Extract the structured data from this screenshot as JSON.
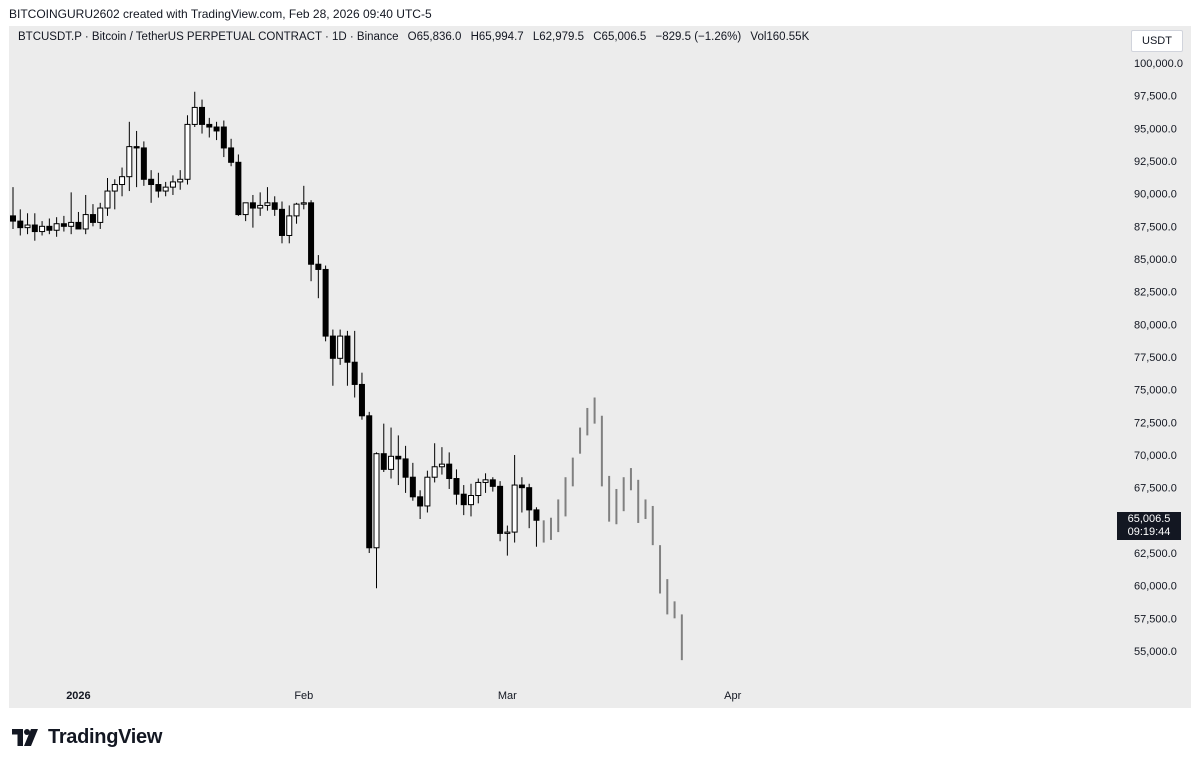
{
  "header": {
    "credit": "BITCOINGURU2602 created with TradingView.com, Feb 28, 2026 09:40 UTC-5"
  },
  "legend": {
    "symbol": "BTCUSDT.P · Bitcoin / TetherUS PERPETUAL CONTRACT · 1D · Binance",
    "open": "O65,836.0",
    "high": "H65,994.7",
    "low": "L62,979.5",
    "close": "C65,006.5",
    "change": "−829.5 (−1.26%)",
    "volume": "Vol160.55K"
  },
  "currency_button": "USDT",
  "last_price": {
    "value": 65006.5,
    "label": "65,006.5",
    "countdown": "09:19:44"
  },
  "footer": {
    "brand": "TradingView"
  },
  "colors": {
    "up_fill": "#ffffff",
    "down_fill": "#000000",
    "candle_outline": "#000000",
    "projection_bars": "#808080",
    "chart_background": "#ececec"
  },
  "chart_data": {
    "type": "candlestick",
    "y_axis": {
      "ylim": [
        53700,
        100900
      ],
      "ticks": [
        55000,
        57500,
        60000,
        62500,
        65000,
        67500,
        70000,
        72500,
        75000,
        77500,
        80000,
        82500,
        85000,
        87500,
        90000,
        92500,
        95000,
        97500,
        100000
      ],
      "tick_labels": [
        "55,000.0",
        "57,500.0",
        "60,000.0",
        "62,500.0",
        "65,000.0",
        "67,500.0",
        "70,000.0",
        "72,500.0",
        "75,000.0",
        "77,500.0",
        "80,000.0",
        "82,500.0",
        "85,000.0",
        "87,500.0",
        "90,000.0",
        "92,500.0",
        "95,000.0",
        "97,500.0",
        "100,000.0"
      ]
    },
    "x_axis": {
      "ticks": [
        {
          "label": "2026",
          "date": "2026-01-01",
          "bold": true
        },
        {
          "label": "Feb",
          "date": "2026-02-01",
          "bold": false
        },
        {
          "label": "Mar",
          "date": "2026-03-01",
          "bold": false
        },
        {
          "label": "Apr",
          "date": "2026-04-01",
          "bold": false
        }
      ]
    },
    "candles": [
      {
        "date": "2025-12-23",
        "o": 88300,
        "h": 90500,
        "l": 87300,
        "c": 87900
      },
      {
        "date": "2025-12-24",
        "o": 87900,
        "h": 88800,
        "l": 86800,
        "c": 87400
      },
      {
        "date": "2025-12-25",
        "o": 87400,
        "h": 88500,
        "l": 86900,
        "c": 87600
      },
      {
        "date": "2025-12-26",
        "o": 87600,
        "h": 88500,
        "l": 86400,
        "c": 87100
      },
      {
        "date": "2025-12-27",
        "o": 87100,
        "h": 87900,
        "l": 86800,
        "c": 87500
      },
      {
        "date": "2025-12-28",
        "o": 87500,
        "h": 88100,
        "l": 86900,
        "c": 87200
      },
      {
        "date": "2025-12-29",
        "o": 87200,
        "h": 88200,
        "l": 86700,
        "c": 87700
      },
      {
        "date": "2025-12-30",
        "o": 87700,
        "h": 88300,
        "l": 87100,
        "c": 87500
      },
      {
        "date": "2025-12-31",
        "o": 87500,
        "h": 90100,
        "l": 86900,
        "c": 87800
      },
      {
        "date": "2026-01-01",
        "o": 87800,
        "h": 88600,
        "l": 87400,
        "c": 87300
      },
      {
        "date": "2026-01-02",
        "o": 87300,
        "h": 89900,
        "l": 86900,
        "c": 88400
      },
      {
        "date": "2026-01-03",
        "o": 88400,
        "h": 89200,
        "l": 87500,
        "c": 87800
      },
      {
        "date": "2026-01-04",
        "o": 87800,
        "h": 89300,
        "l": 87300,
        "c": 88900
      },
      {
        "date": "2026-01-05",
        "o": 88900,
        "h": 91200,
        "l": 88300,
        "c": 90200
      },
      {
        "date": "2026-01-06",
        "o": 90200,
        "h": 91100,
        "l": 88800,
        "c": 90700
      },
      {
        "date": "2026-01-07",
        "o": 90700,
        "h": 92000,
        "l": 89800,
        "c": 91300
      },
      {
        "date": "2026-01-08",
        "o": 91300,
        "h": 95500,
        "l": 90200,
        "c": 93600
      },
      {
        "date": "2026-01-09",
        "o": 93600,
        "h": 94800,
        "l": 90500,
        "c": 93500
      },
      {
        "date": "2026-01-10",
        "o": 93500,
        "h": 94000,
        "l": 90600,
        "c": 91100
      },
      {
        "date": "2026-01-11",
        "o": 91100,
        "h": 91800,
        "l": 89300,
        "c": 90700
      },
      {
        "date": "2026-01-12",
        "o": 90700,
        "h": 91600,
        "l": 89700,
        "c": 90200
      },
      {
        "date": "2026-01-13",
        "o": 90200,
        "h": 90900,
        "l": 89800,
        "c": 90500
      },
      {
        "date": "2026-01-14",
        "o": 90500,
        "h": 91400,
        "l": 89900,
        "c": 90900
      },
      {
        "date": "2026-01-15",
        "o": 90900,
        "h": 91800,
        "l": 90300,
        "c": 91100
      },
      {
        "date": "2026-01-16",
        "o": 91100,
        "h": 96000,
        "l": 90700,
        "c": 95300
      },
      {
        "date": "2026-01-17",
        "o": 95300,
        "h": 97800,
        "l": 95100,
        "c": 96600
      },
      {
        "date": "2026-01-18",
        "o": 96600,
        "h": 97200,
        "l": 94600,
        "c": 95300
      },
      {
        "date": "2026-01-19",
        "o": 95300,
        "h": 95800,
        "l": 94300,
        "c": 95100
      },
      {
        "date": "2026-01-20",
        "o": 95100,
        "h": 95500,
        "l": 94100,
        "c": 94800
      },
      {
        "date": "2026-01-21",
        "o": 95100,
        "h": 95600,
        "l": 92800,
        "c": 93500
      },
      {
        "date": "2026-01-22",
        "o": 93500,
        "h": 94200,
        "l": 92100,
        "c": 92400
      },
      {
        "date": "2026-01-23",
        "o": 92400,
        "h": 93000,
        "l": 88300,
        "c": 88400
      },
      {
        "date": "2026-01-24",
        "o": 88400,
        "h": 89200,
        "l": 87900,
        "c": 89300
      },
      {
        "date": "2026-01-25",
        "o": 89300,
        "h": 89900,
        "l": 87400,
        "c": 88900
      },
      {
        "date": "2026-01-26",
        "o": 88900,
        "h": 90100,
        "l": 88300,
        "c": 89100
      },
      {
        "date": "2026-01-27",
        "o": 89100,
        "h": 90500,
        "l": 88700,
        "c": 89300
      },
      {
        "date": "2026-01-28",
        "o": 89300,
        "h": 89800,
        "l": 88300,
        "c": 88800
      },
      {
        "date": "2026-01-29",
        "o": 88800,
        "h": 89400,
        "l": 86200,
        "c": 86800
      },
      {
        "date": "2026-01-30",
        "o": 86800,
        "h": 89100,
        "l": 86200,
        "c": 88300
      },
      {
        "date": "2026-01-31",
        "o": 88300,
        "h": 89300,
        "l": 87700,
        "c": 89200
      },
      {
        "date": "2026-02-01",
        "o": 89200,
        "h": 90600,
        "l": 88800,
        "c": 89300
      },
      {
        "date": "2026-02-02",
        "o": 89300,
        "h": 89500,
        "l": 83300,
        "c": 84600
      },
      {
        "date": "2026-02-03",
        "o": 84600,
        "h": 85300,
        "l": 82000,
        "c": 84200
      },
      {
        "date": "2026-02-04",
        "o": 84200,
        "h": 84500,
        "l": 78700,
        "c": 79100
      },
      {
        "date": "2026-02-05",
        "o": 79100,
        "h": 79600,
        "l": 75300,
        "c": 77400
      },
      {
        "date": "2026-02-06",
        "o": 77400,
        "h": 79600,
        "l": 76900,
        "c": 79100
      },
      {
        "date": "2026-02-07",
        "o": 79100,
        "h": 79500,
        "l": 75300,
        "c": 77100
      },
      {
        "date": "2026-02-08",
        "o": 77100,
        "h": 79500,
        "l": 74400,
        "c": 75400
      },
      {
        "date": "2026-02-09",
        "o": 75400,
        "h": 76300,
        "l": 72700,
        "c": 73000
      },
      {
        "date": "2026-02-10",
        "o": 73000,
        "h": 73300,
        "l": 62500,
        "c": 62900
      },
      {
        "date": "2026-02-11",
        "o": 62900,
        "h": 70200,
        "l": 59800,
        "c": 70100
      },
      {
        "date": "2026-02-12",
        "o": 70100,
        "h": 72400,
        "l": 68700,
        "c": 68900
      },
      {
        "date": "2026-02-13",
        "o": 68900,
        "h": 72100,
        "l": 68200,
        "c": 69900
      },
      {
        "date": "2026-02-14",
        "o": 69900,
        "h": 71500,
        "l": 67700,
        "c": 69700
      },
      {
        "date": "2026-02-15",
        "o": 69700,
        "h": 70700,
        "l": 67100,
        "c": 68300
      },
      {
        "date": "2026-02-16",
        "o": 68300,
        "h": 69400,
        "l": 66500,
        "c": 66800
      },
      {
        "date": "2026-02-17",
        "o": 66800,
        "h": 67300,
        "l": 65100,
        "c": 66100
      },
      {
        "date": "2026-02-18",
        "o": 66100,
        "h": 68800,
        "l": 65600,
        "c": 68300
      },
      {
        "date": "2026-02-19",
        "o": 68300,
        "h": 70900,
        "l": 67900,
        "c": 69100
      },
      {
        "date": "2026-02-20",
        "o": 69100,
        "h": 70600,
        "l": 68500,
        "c": 69300
      },
      {
        "date": "2026-02-21",
        "o": 69300,
        "h": 70200,
        "l": 67400,
        "c": 68200
      },
      {
        "date": "2026-02-22",
        "o": 68200,
        "h": 68900,
        "l": 66200,
        "c": 67000
      },
      {
        "date": "2026-02-23",
        "o": 67000,
        "h": 67700,
        "l": 65400,
        "c": 66200
      },
      {
        "date": "2026-02-24",
        "o": 66200,
        "h": 67800,
        "l": 65300,
        "c": 66900
      },
      {
        "date": "2026-02-25",
        "o": 66900,
        "h": 68200,
        "l": 66300,
        "c": 67900
      },
      {
        "date": "2026-02-26",
        "o": 67900,
        "h": 68600,
        "l": 67100,
        "c": 68100
      },
      {
        "date": "2026-02-27",
        "o": 68100,
        "h": 68300,
        "l": 67200,
        "c": 67600
      },
      {
        "date": "2026-02-28",
        "o": 67600,
        "h": 68000,
        "l": 63400,
        "c": 64000
      },
      {
        "date": "2026-03-01",
        "o": 64000,
        "h": 64600,
        "l": 62300,
        "c": 64100
      },
      {
        "date": "2026-03-02",
        "o": 64100,
        "h": 70000,
        "l": 63300,
        "c": 67700
      },
      {
        "date": "2026-03-03",
        "o": 67700,
        "h": 68300,
        "l": 65600,
        "c": 67500
      },
      {
        "date": "2026-03-04",
        "o": 67500,
        "h": 67800,
        "l": 64400,
        "c": 65800
      },
      {
        "date": "2026-03-05",
        "o": 65800,
        "h": 66000,
        "l": 62980,
        "c": 65006
      }
    ],
    "projection_bars": [
      {
        "date": "2026-03-06",
        "h": 65000,
        "l": 63300
      },
      {
        "date": "2026-03-07",
        "h": 65200,
        "l": 63500
      },
      {
        "date": "2026-03-08",
        "h": 66600,
        "l": 64100
      },
      {
        "date": "2026-03-09",
        "h": 68300,
        "l": 65300
      },
      {
        "date": "2026-03-10",
        "h": 69800,
        "l": 67600
      },
      {
        "date": "2026-03-11",
        "h": 72100,
        "l": 70100
      },
      {
        "date": "2026-03-12",
        "h": 73600,
        "l": 71500
      },
      {
        "date": "2026-03-13",
        "h": 74400,
        "l": 72400
      },
      {
        "date": "2026-03-14",
        "h": 73000,
        "l": 67600
      },
      {
        "date": "2026-03-15",
        "h": 68400,
        "l": 64900
      },
      {
        "date": "2026-03-16",
        "h": 67400,
        "l": 64700
      },
      {
        "date": "2026-03-17",
        "h": 68300,
        "l": 65700
      },
      {
        "date": "2026-03-18",
        "h": 69000,
        "l": 67300
      },
      {
        "date": "2026-03-19",
        "h": 68100,
        "l": 64800
      },
      {
        "date": "2026-03-20",
        "h": 66600,
        "l": 65100
      },
      {
        "date": "2026-03-21",
        "h": 66100,
        "l": 63100
      },
      {
        "date": "2026-03-22",
        "h": 63100,
        "l": 59400
      },
      {
        "date": "2026-03-23",
        "h": 60500,
        "l": 57800
      },
      {
        "date": "2026-03-24",
        "h": 58800,
        "l": 57500
      },
      {
        "date": "2026-03-25",
        "h": 57800,
        "l": 54300
      }
    ]
  }
}
